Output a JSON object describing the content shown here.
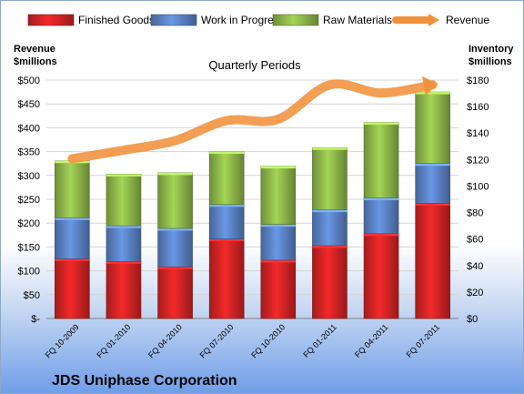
{
  "chart_data": {
    "type": "bar",
    "title": "Quarterly Periods",
    "company": "JDS Uniphase Corporation",
    "categories": [
      "FQ 10-2009",
      "FQ 01-2010",
      "FQ 04-2010",
      "FQ 07-2010",
      "FQ 10-2010",
      "FQ 01-2011",
      "FQ 04-2011",
      "FQ 07-2011"
    ],
    "series": [
      {
        "name": "Finished Goods",
        "values": [
          45,
          43,
          39,
          60,
          44,
          55,
          64,
          87
        ],
        "color": "#d42424"
      },
      {
        "name": "Work in Progress",
        "values": [
          31,
          27,
          29,
          26,
          27,
          27,
          27,
          30
        ],
        "color": "#5b83c6"
      },
      {
        "name": "Raw Materials",
        "values": [
          43,
          39,
          42,
          40,
          44,
          47,
          57,
          54
        ],
        "color": "#8fb84a"
      }
    ],
    "line_series": {
      "name": "Revenue",
      "values": [
        335,
        353,
        373,
        415,
        418,
        490,
        473,
        490
      ],
      "color": "#f0923c"
    },
    "left_axis": {
      "label_line1": "Revenue",
      "label_line2": "$millions",
      "min": 0,
      "max": 500,
      "step": 50,
      "ticks": [
        "$-",
        "$50",
        "$100",
        "$150",
        "$200",
        "$250",
        "$300",
        "$350",
        "$400",
        "$450",
        "$500"
      ]
    },
    "right_axis": {
      "label_line1": "Inventory",
      "label_line2": "$millions",
      "min": 0,
      "max": 180,
      "step": 20,
      "ticks": [
        "$0",
        "$20",
        "$40",
        "$60",
        "$80",
        "$100",
        "$120",
        "$140",
        "$160",
        "$180"
      ]
    },
    "legend_position": "top"
  }
}
